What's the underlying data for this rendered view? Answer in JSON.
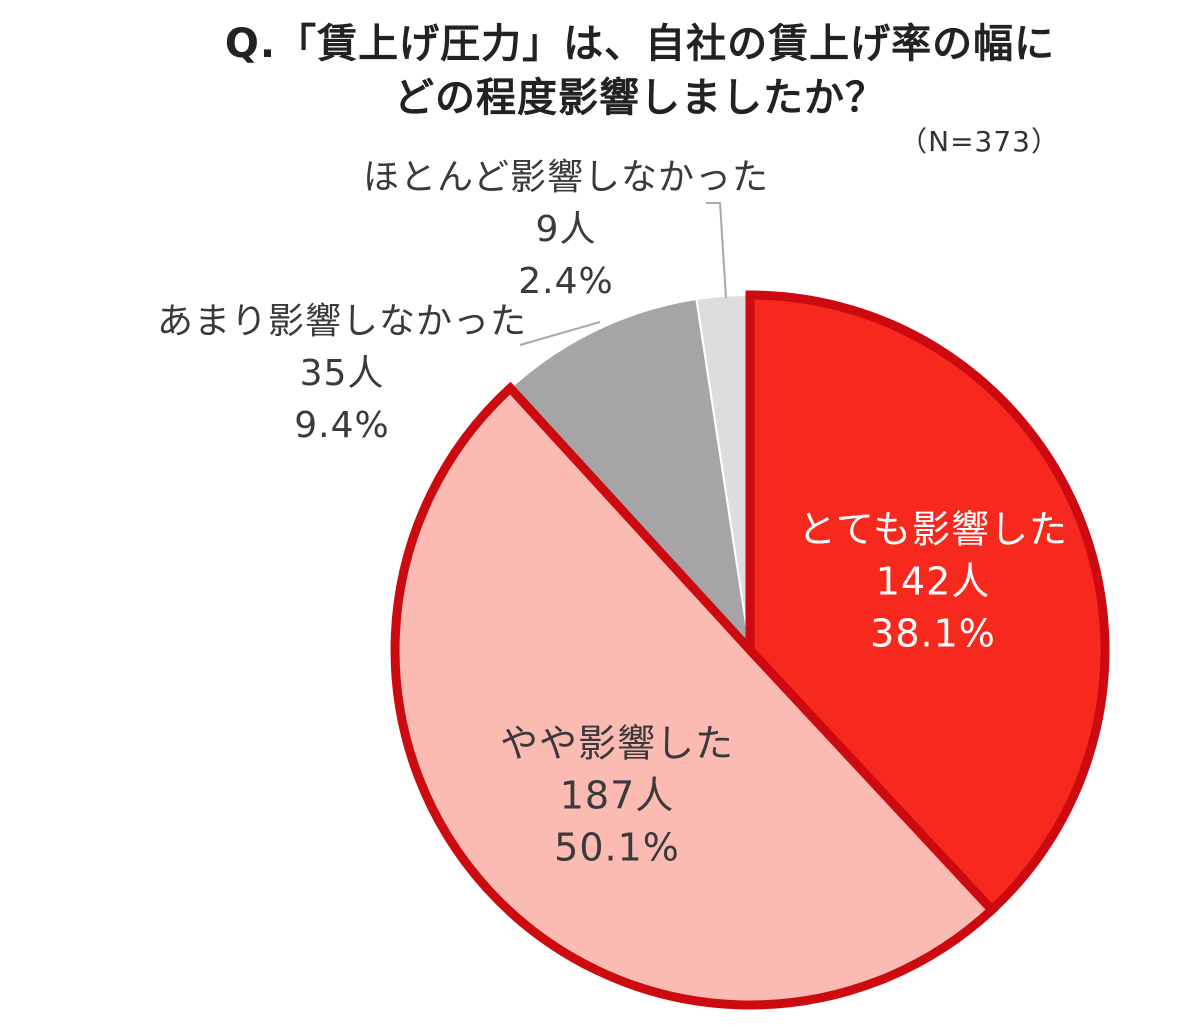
{
  "title": {
    "line1": "Q.「賃上げ圧力」は、自社の賃上げ率の幅に",
    "line2": "どの程度影響しましたか？"
  },
  "sample_size": "（N=373）",
  "chart_data": {
    "type": "pie",
    "title": "Q.「賃上げ圧力」は、自社の賃上げ率の幅にどの程度影響しましたか？",
    "n": 373,
    "start": "12 o'clock",
    "direction": "clockwise",
    "slices": [
      {
        "label": "とても影響した",
        "count_label": "142人",
        "percent_label": "38.1%",
        "count": 142,
        "percent": 38.1,
        "color": "#f7291f",
        "text_color": "#ffffff",
        "outlined": true,
        "label_placement": "inside"
      },
      {
        "label": "やや影響した",
        "count_label": "187人",
        "percent_label": "50.1%",
        "count": 187,
        "percent": 50.1,
        "color": "#fbbbb3",
        "text_color": "#3a3a3a",
        "outlined": true,
        "label_placement": "inside"
      },
      {
        "label": "あまり影響しなかった",
        "count_label": "35人",
        "percent_label": "9.4%",
        "count": 35,
        "percent": 9.4,
        "color": "#a6a4a6",
        "text_color": "#3a3a3a",
        "outlined": false,
        "label_placement": "outside"
      },
      {
        "label": "ほとんど影響しなかった",
        "count_label": "9人",
        "percent_label": "2.4%",
        "count": 9,
        "percent": 2.4,
        "color": "#dedcdf",
        "text_color": "#3a3a3a",
        "outlined": false,
        "label_placement": "outside"
      }
    ],
    "outline_color": "#cc0a10",
    "separator_color": "#ffffff"
  }
}
